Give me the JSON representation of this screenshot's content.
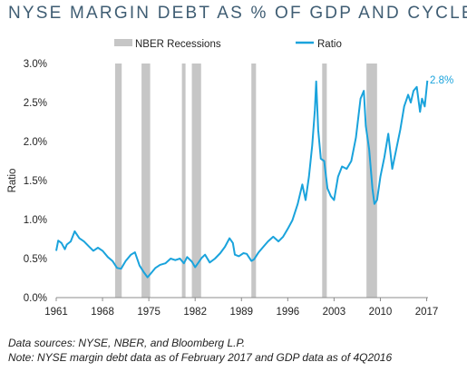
{
  "title": "NYSE MARGIN DEBT AS % OF GDP AND CYCLES",
  "notes": {
    "line1": "Data sources: NYSE, NBER, and Bloomberg L.P.",
    "line2": "Note: NYSE margin debt data as of February 2017 and GDP data as of 4Q2016"
  },
  "colors": {
    "title": "#3f5d73",
    "line": "#1aa3dc",
    "recession": "#c6c6c6",
    "axis": "#8c8c8c"
  },
  "chart_data": {
    "type": "line",
    "title": "NYSE MARGIN DEBT AS % OF GDP AND CYCLES",
    "xlabel": "",
    "ylabel": "Ratio",
    "xlim": [
      1961,
      2017.2
    ],
    "ylim": [
      0,
      3.0
    ],
    "x_ticks": [
      1961,
      1968,
      1975,
      1982,
      1989,
      1996,
      2003,
      2010,
      2017
    ],
    "y_ticks": [
      0,
      0.5,
      1.0,
      1.5,
      2.0,
      2.5,
      3.0
    ],
    "y_tick_labels": [
      "0.0%",
      "0.5%",
      "1.0%",
      "1.5%",
      "2.0%",
      "2.5%",
      "3.0%"
    ],
    "legend": {
      "position": "top",
      "entries": [
        "NBER Recessions",
        "Ratio"
      ]
    },
    "end_label": "2.8%",
    "recessions": [
      [
        1969.9,
        1970.9
      ],
      [
        1973.9,
        1975.2
      ],
      [
        1980.0,
        1980.5
      ],
      [
        1981.5,
        1982.9
      ],
      [
        1990.5,
        1991.2
      ],
      [
        2001.2,
        2001.9
      ],
      [
        2007.9,
        2009.5
      ]
    ],
    "series": [
      {
        "name": "Ratio",
        "x": [
          1961.0,
          1961.3,
          1961.8,
          1962.3,
          1962.6,
          1963.2,
          1963.8,
          1964.5,
          1965.2,
          1966.0,
          1966.6,
          1967.3,
          1968.0,
          1968.8,
          1969.5,
          1970.2,
          1970.8,
          1971.5,
          1972.3,
          1972.9,
          1973.6,
          1974.2,
          1974.8,
          1975.4,
          1976.0,
          1976.7,
          1977.5,
          1978.3,
          1979.0,
          1979.7,
          1980.3,
          1980.8,
          1981.5,
          1982.0,
          1982.5,
          1983.0,
          1983.5,
          1984.2,
          1985.0,
          1985.8,
          1986.5,
          1987.2,
          1987.7,
          1988.0,
          1988.6,
          1989.3,
          1989.8,
          1990.5,
          1990.9,
          1991.6,
          1992.3,
          1993.0,
          1993.8,
          1994.6,
          1995.3,
          1996.0,
          1996.7,
          1997.5,
          1998.2,
          1998.7,
          1999.2,
          1999.7,
          2000.1,
          2000.3,
          2000.6,
          2001.0,
          2001.5,
          2002.0,
          2002.5,
          2003.0,
          2003.6,
          2004.2,
          2004.9,
          2005.6,
          2006.3,
          2007.0,
          2007.5,
          2007.8,
          2008.3,
          2008.8,
          2009.1,
          2009.5,
          2010.0,
          2010.6,
          2011.2,
          2011.8,
          2012.4,
          2013.0,
          2013.6,
          2014.2,
          2014.6,
          2015.0,
          2015.5,
          2016.0,
          2016.3,
          2016.7,
          2017.1
        ],
        "values": [
          0.6,
          0.73,
          0.7,
          0.62,
          0.68,
          0.72,
          0.85,
          0.76,
          0.72,
          0.65,
          0.6,
          0.64,
          0.6,
          0.52,
          0.47,
          0.38,
          0.37,
          0.47,
          0.55,
          0.58,
          0.41,
          0.33,
          0.26,
          0.32,
          0.38,
          0.42,
          0.44,
          0.5,
          0.48,
          0.5,
          0.44,
          0.52,
          0.46,
          0.39,
          0.45,
          0.51,
          0.55,
          0.45,
          0.5,
          0.57,
          0.65,
          0.76,
          0.7,
          0.55,
          0.53,
          0.57,
          0.56,
          0.47,
          0.49,
          0.58,
          0.65,
          0.72,
          0.78,
          0.72,
          0.78,
          0.88,
          0.99,
          1.2,
          1.45,
          1.25,
          1.55,
          1.95,
          2.4,
          2.77,
          2.15,
          1.78,
          1.75,
          1.4,
          1.3,
          1.25,
          1.55,
          1.68,
          1.65,
          1.75,
          2.05,
          2.55,
          2.65,
          2.2,
          1.9,
          1.4,
          1.2,
          1.25,
          1.55,
          1.8,
          2.1,
          1.65,
          1.9,
          2.15,
          2.45,
          2.6,
          2.5,
          2.65,
          2.7,
          2.38,
          2.55,
          2.45,
          2.78
        ]
      }
    ]
  }
}
